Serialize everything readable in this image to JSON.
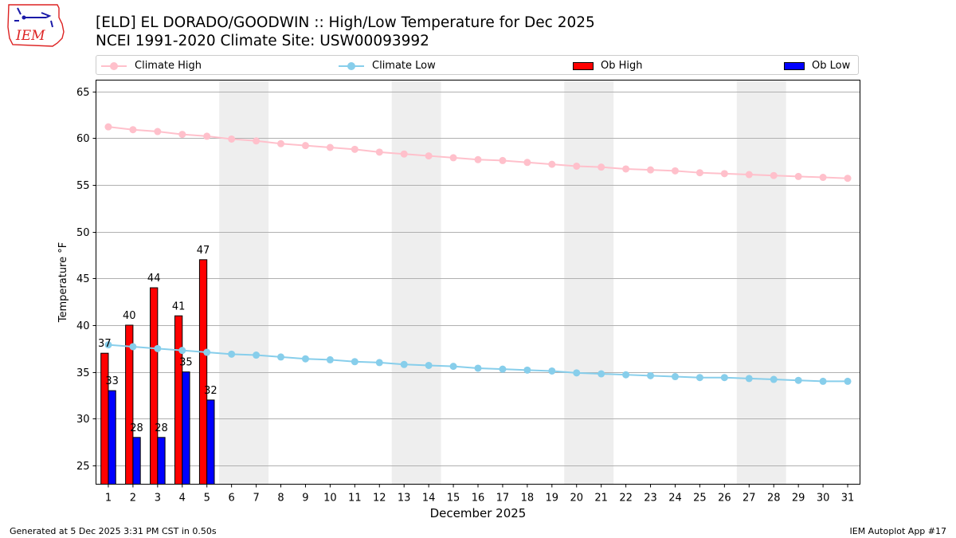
{
  "title": "[ELD] EL DORADO/GOODWIN :: High/Low Temperature for Dec 2025",
  "subtitle": "NCEI 1991-2020 Climate Site: USW00093992",
  "logo_text": "IEM",
  "footer_left": "Generated at 5 Dec 2025 3:31 PM CST in 0.50s",
  "footer_right": "IEM Autoplot App #17",
  "colors": {
    "climate_high": "#ffc0cb",
    "climate_low": "#87ceeb",
    "ob_high": "#ff0000",
    "ob_low": "#0000ff",
    "weekend_shade": "#eeeeee",
    "grid": "#b0b0b0"
  },
  "legend": {
    "climate_high": "Climate High",
    "climate_low": "Climate Low",
    "ob_high": "Ob High",
    "ob_low": "Ob Low"
  },
  "chart_data": {
    "type": "bar",
    "xlabel": "December 2025",
    "ylabel": "Temperature °F",
    "ylim": [
      23,
      66.2
    ],
    "yticks": [
      25,
      30,
      35,
      40,
      45,
      50,
      55,
      60,
      65
    ],
    "grid": "horizontal",
    "legend_position": "top",
    "x": [
      1,
      2,
      3,
      4,
      5,
      6,
      7,
      8,
      9,
      10,
      11,
      12,
      13,
      14,
      15,
      16,
      17,
      18,
      19,
      20,
      21,
      22,
      23,
      24,
      25,
      26,
      27,
      28,
      29,
      30,
      31
    ],
    "shaded_days": [
      [
        6,
        7
      ],
      [
        13,
        14
      ],
      [
        20,
        21
      ],
      [
        27,
        28
      ]
    ],
    "climate_high": [
      61.2,
      60.9,
      60.7,
      60.4,
      60.2,
      59.9,
      59.7,
      59.4,
      59.2,
      59.0,
      58.8,
      58.5,
      58.3,
      58.1,
      57.9,
      57.7,
      57.6,
      57.4,
      57.2,
      57.0,
      56.9,
      56.7,
      56.6,
      56.5,
      56.3,
      56.2,
      56.1,
      56.0,
      55.9,
      55.8,
      55.7
    ],
    "climate_low": [
      37.9,
      37.7,
      37.5,
      37.3,
      37.1,
      36.9,
      36.8,
      36.6,
      36.4,
      36.3,
      36.1,
      36.0,
      35.8,
      35.7,
      35.6,
      35.4,
      35.3,
      35.2,
      35.1,
      34.9,
      34.8,
      34.7,
      34.6,
      34.5,
      34.4,
      34.4,
      34.3,
      34.2,
      34.1,
      34.0,
      34.0
    ],
    "ob_high": [
      37,
      40,
      44,
      41,
      47
    ],
    "ob_low": [
      33,
      28,
      28,
      35,
      32
    ]
  }
}
